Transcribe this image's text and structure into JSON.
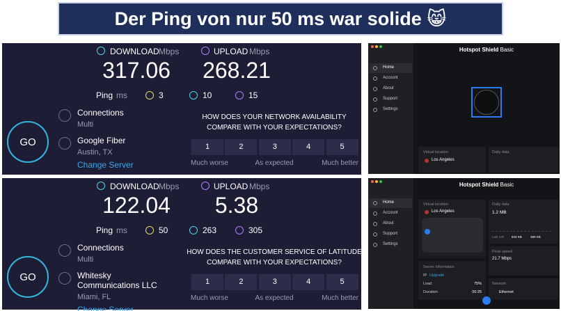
{
  "header": {
    "title": "Der Ping von nur 50 ms war solide 😸"
  },
  "speedtests": [
    {
      "download_label": "DOWNLOAD",
      "download_unit": "Mbps",
      "download": "317.06",
      "upload_label": "UPLOAD",
      "upload_unit": "Mbps",
      "upload": "268.21",
      "ping_label": "Ping",
      "ping_unit": "ms",
      "ping": "3",
      "ping_down": "10",
      "ping_up": "15",
      "go": "GO",
      "connections_label": "Connections",
      "connections": "Multi",
      "isp": [
        "Google Fiber"
      ],
      "location": "Austin, TX",
      "change_server": "Change Server",
      "question": [
        "HOW DOES YOUR NETWORK AVAILABILITY",
        "COMPARE WITH YOUR EXPECTATIONS?"
      ],
      "ratings": [
        "1",
        "2",
        "3",
        "4",
        "5"
      ],
      "scale": [
        "Much worse",
        "As expected",
        "Much better"
      ]
    },
    {
      "download_label": "DOWNLOAD",
      "download_unit": "Mbps",
      "download": "122.04",
      "upload_label": "UPLOAD",
      "upload_unit": "Mbps",
      "upload": "5.38",
      "ping_label": "Ping",
      "ping_unit": "ms",
      "ping": "50",
      "ping_down": "263",
      "ping_up": "305",
      "go": "GO",
      "connections_label": "Connections",
      "connections": "Multi",
      "isp": [
        "Whitesky",
        "Communications LLC"
      ],
      "location": "Miami, FL",
      "change_server": "Change Server",
      "question": [
        "HOW DOES THE CUSTOMER SERVICE OF LATITUDE",
        "COMPARE WITH YOUR EXPECTATIONS?"
      ],
      "ratings": [
        "1",
        "2",
        "3",
        "4",
        "5"
      ],
      "scale": [
        "Much worse",
        "As expected",
        "Much better"
      ]
    }
  ],
  "apps": [
    {
      "title": {
        "brand": "Hotspot Shield",
        "plan": "Basic"
      },
      "nav": [
        "Home",
        "Account",
        "About",
        "Support",
        "Settings"
      ],
      "virtual_location_label": "Virtual location",
      "location": "Los Angeles",
      "daily_data_label": "Daily data"
    },
    {
      "title": {
        "brand": "Hotspot Shield",
        "plan": "Basic"
      },
      "nav": [
        "Home",
        "Account",
        "About",
        "Support",
        "Settings"
      ],
      "virtual_location_label": "Virtual location",
      "location": "Los Angeles",
      "daily_data_label": "Daily data",
      "data_used": "1.2 MB",
      "period": "Last 24h",
      "down": "843 KB",
      "up": "358 KB",
      "peak_speed_label": "Peak speed",
      "peak_speed": "21.7 Mbps",
      "server_info_label": "Server information",
      "ip_label": "IP",
      "ip": "Upgrade",
      "load_label": "Load",
      "load": "75%",
      "duration_label": "Duration",
      "duration": "00:25",
      "network_label": "Network",
      "network": "Ethernet"
    }
  ]
}
